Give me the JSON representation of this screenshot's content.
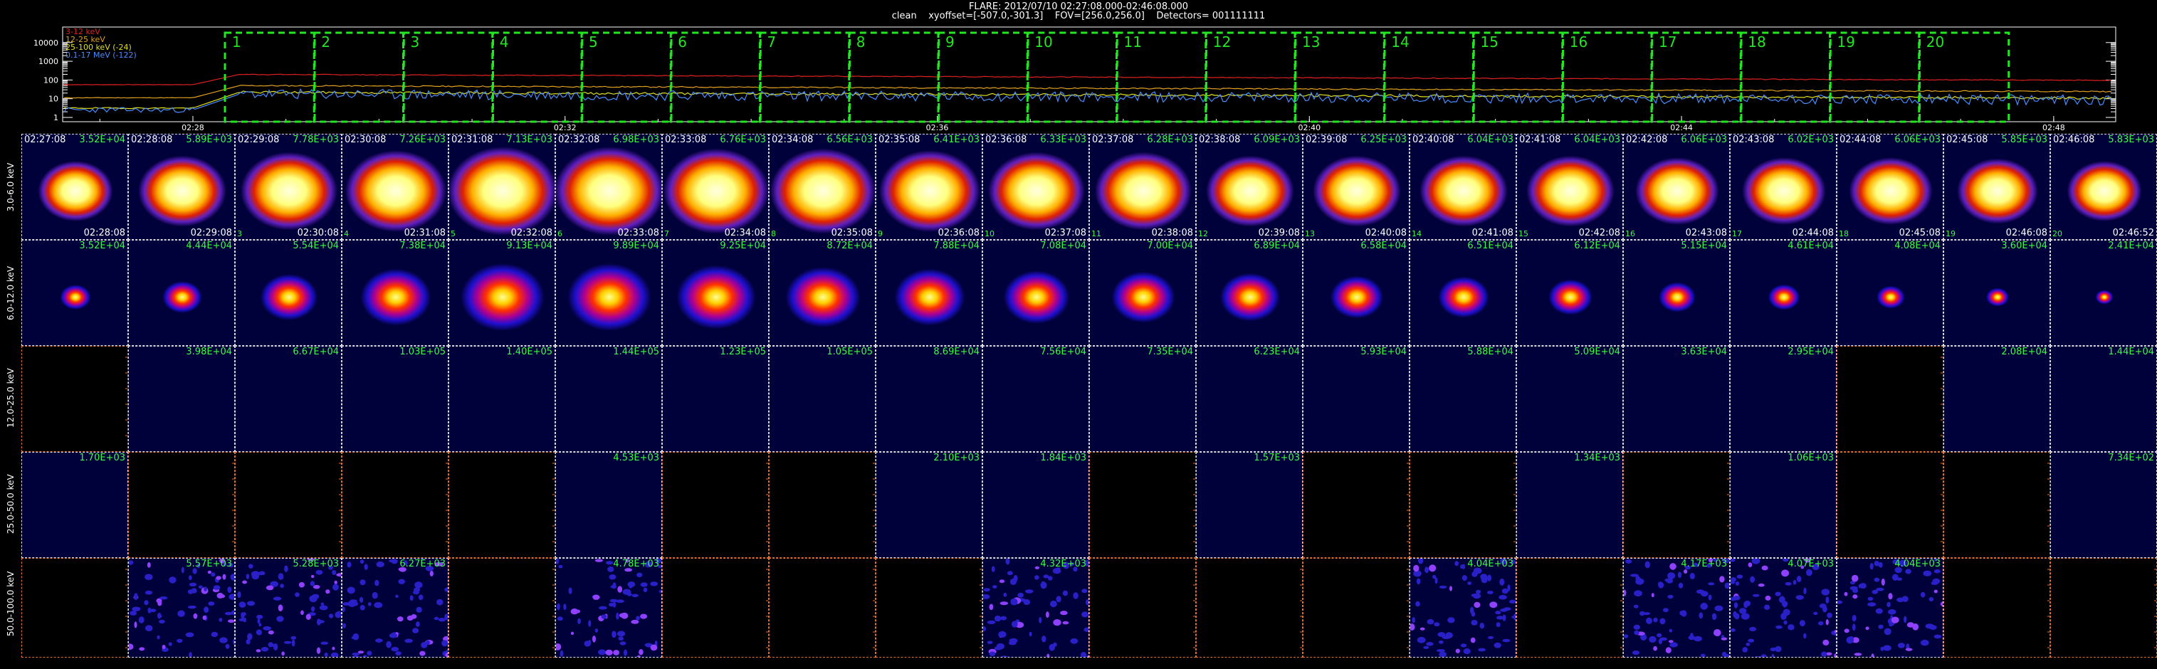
{
  "header": {
    "line1": "FLARE: 2012/07/10 02:27:08.000-02:46:08.000",
    "line2": "clean    xyoffset=[-507.0,-301.3]    FOV=[256.0,256.0]    Detectors= 001111111"
  },
  "lightcurve": {
    "legend": [
      {
        "label": "3-12 keV",
        "color": "#e02020"
      },
      {
        "label": "12-25 keV",
        "color": "#e0a020"
      },
      {
        "label": "25-100 keV (-24)",
        "color": "#e0e020"
      },
      {
        "label": "0.1-17 MeV (-122)",
        "color": "#4a8cff"
      }
    ],
    "y_ticks": [
      "10000",
      "1000",
      "100",
      "10",
      "1"
    ],
    "x_ticks": [
      "02:28",
      "02:32",
      "02:36",
      "02:40",
      "02:44",
      "02:48"
    ],
    "intervals": [
      "1",
      "2",
      "3",
      "4",
      "5",
      "6",
      "7",
      "8",
      "9",
      "10",
      "11",
      "12",
      "13",
      "14",
      "15",
      "16",
      "17",
      "18",
      "19",
      "20"
    ],
    "colors": {
      "box": "#22e622",
      "axis": "#ffffff"
    }
  },
  "grid": {
    "start_times": [
      "02:27:08",
      "02:28:08",
      "02:29:08",
      "02:30:08",
      "02:31:08",
      "02:32:08",
      "02:33:08",
      "02:34:08",
      "02:35:08",
      "02:36:08",
      "02:37:08",
      "02:38:08",
      "02:39:08",
      "02:40:08",
      "02:41:08",
      "02:42:08",
      "02:43:08",
      "02:44:08",
      "02:45:08",
      "02:46:08"
    ],
    "end_times": [
      "02:28:08",
      "02:29:08",
      "02:30:08",
      "02:31:08",
      "02:32:08",
      "02:33:08",
      "02:34:08",
      "02:35:08",
      "02:36:08",
      "02:37:08",
      "02:38:08",
      "02:39:08",
      "02:40:08",
      "02:41:08",
      "02:42:08",
      "02:43:08",
      "02:44:08",
      "02:45:08",
      "02:46:08",
      "02:46:52"
    ],
    "rows": [
      {
        "label": "3.0-6.0 keV",
        "values": [
          "3.52E+04",
          "5.89E+03",
          "7.78E+03",
          "7.26E+03",
          "7.13E+03",
          "6.98E+03",
          "6.76E+03",
          "6.56E+03",
          "6.41E+03",
          "6.33E+03",
          "6.28E+03",
          "6.09E+03",
          "6.25E+03",
          "6.04E+03",
          "6.04E+03",
          "6.06E+03",
          "6.02E+03",
          "6.06E+03",
          "5.85E+03",
          "5.83E+03"
        ],
        "present": [
          true,
          true,
          true,
          true,
          true,
          true,
          true,
          true,
          true,
          true,
          true,
          true,
          true,
          true,
          true,
          true,
          true,
          true,
          true,
          true
        ],
        "indices": [
          "",
          "",
          "3",
          "4",
          "5",
          "6",
          "7",
          "8",
          "9",
          "10",
          "11",
          "12",
          "13",
          "14",
          "15",
          "16",
          "17",
          "18",
          "19",
          "20"
        ]
      },
      {
        "label": "6.0-12.0 keV",
        "values": [
          "3.52E+04",
          "4.44E+04",
          "5.54E+04",
          "7.38E+04",
          "9.13E+04",
          "9.89E+04",
          "9.25E+04",
          "8.72E+04",
          "7.88E+04",
          "7.08E+04",
          "7.00E+04",
          "6.89E+04",
          "6.58E+04",
          "6.51E+04",
          "6.12E+04",
          "5.15E+04",
          "4.61E+04",
          "4.08E+04",
          "3.60E+04",
          "2.41E+04"
        ],
        "present": [
          true,
          true,
          true,
          true,
          true,
          true,
          true,
          true,
          true,
          true,
          true,
          true,
          true,
          true,
          true,
          true,
          true,
          true,
          true,
          true
        ]
      },
      {
        "label": "12.0-25.0 keV",
        "values": [
          "",
          "3.98E+04",
          "6.67E+04",
          "1.03E+05",
          "1.40E+05",
          "1.44E+05",
          "1.23E+05",
          "1.05E+05",
          "8.69E+04",
          "7.56E+04",
          "7.35E+04",
          "6.23E+04",
          "5.93E+04",
          "5.88E+04",
          "5.09E+04",
          "3.63E+04",
          "2.95E+04",
          "",
          "2.08E+04",
          "1.44E+04"
        ],
        "present": [
          false,
          true,
          true,
          true,
          true,
          true,
          true,
          true,
          true,
          true,
          true,
          true,
          true,
          true,
          true,
          true,
          true,
          false,
          true,
          true
        ]
      },
      {
        "label": "25.0-50.0 keV",
        "values": [
          "1.70E+03",
          "",
          "",
          "",
          "",
          "4.53E+03",
          "",
          "",
          "2.10E+03",
          "1.84E+03",
          "",
          "1.57E+03",
          "",
          "",
          "1.34E+03",
          "",
          "1.06E+03",
          "",
          "",
          "7.34E+02"
        ],
        "present": [
          true,
          false,
          false,
          false,
          false,
          true,
          false,
          false,
          true,
          true,
          false,
          true,
          false,
          false,
          true,
          false,
          true,
          false,
          false,
          true
        ]
      },
      {
        "label": "50.0-100.0 keV",
        "values": [
          "",
          "5.57E+03",
          "5.28E+03",
          "6.27E+03",
          "",
          "4.78E+03",
          "",
          "",
          "",
          "4.32E+03",
          "",
          "",
          "",
          "4.04E+03",
          "",
          "4.17E+03",
          "4.07E+03",
          "4.04E+03",
          "",
          ""
        ],
        "present": [
          false,
          true,
          true,
          true,
          false,
          true,
          false,
          false,
          false,
          true,
          false,
          false,
          false,
          true,
          false,
          true,
          true,
          true,
          false,
          false
        ]
      }
    ]
  }
}
